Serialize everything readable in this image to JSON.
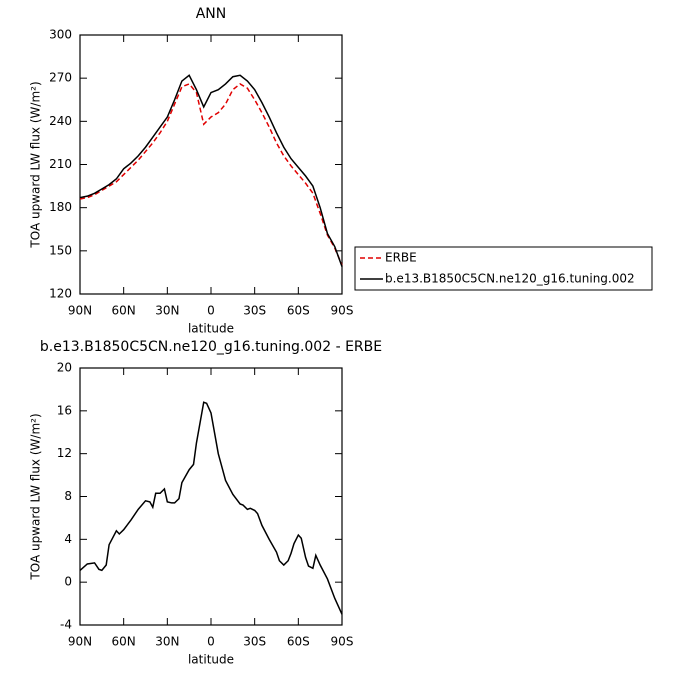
{
  "chart_data": [
    {
      "type": "line",
      "title": "ANN",
      "xlabel": "latitude",
      "ylabel": "TOA upward LW flux (W/m²)",
      "x": [
        90,
        85,
        80,
        75,
        70,
        65,
        60,
        55,
        50,
        45,
        40,
        35,
        30,
        25,
        20,
        15,
        10,
        5,
        0,
        -5,
        -10,
        -15,
        -20,
        -25,
        -30,
        -35,
        -40,
        -45,
        -50,
        -55,
        -60,
        -65,
        -70,
        -75,
        -80,
        -85,
        -90
      ],
      "series": [
        {
          "name": "ERBE",
          "color": "#e00000",
          "dashed": true,
          "values": [
            186,
            187,
            189,
            192,
            195,
            198,
            203,
            208,
            213,
            219,
            225,
            232,
            240,
            252,
            264,
            266,
            260,
            238,
            243,
            246,
            252,
            262,
            266,
            263,
            255,
            246,
            236,
            225,
            216,
            209,
            203,
            197,
            190,
            176,
            161,
            152,
            140
          ]
        },
        {
          "name": "b.e13.B1850C5CN.ne120_g16.tuning.002",
          "color": "#000000",
          "dashed": false,
          "values": [
            187,
            188,
            190,
            193,
            196,
            200,
            207,
            211,
            216,
            222,
            229,
            236,
            243,
            255,
            268,
            272,
            262,
            250,
            260,
            262,
            266,
            271,
            272,
            268,
            262,
            253,
            243,
            232,
            222,
            214,
            208,
            202,
            195,
            180,
            162,
            153,
            139
          ]
        }
      ],
      "xlim": [
        90,
        -90
      ],
      "xticks": [
        {
          "value": 90,
          "label": "90N"
        },
        {
          "value": 60,
          "label": "60N"
        },
        {
          "value": 30,
          "label": "30N"
        },
        0,
        {
          "value": -30,
          "label": "30S"
        },
        {
          "value": -60,
          "label": "60S"
        },
        {
          "value": -90,
          "label": "90S"
        }
      ],
      "ylim": [
        120,
        300
      ],
      "yticks": [
        120,
        150,
        180,
        210,
        240,
        270,
        300
      ],
      "legend": "right"
    },
    {
      "type": "line",
      "title": "b.e13.B1850C5CN.ne120_g16.tuning.002 - ERBE",
      "xlabel": "latitude",
      "ylabel": "TOA upward LW flux (W/m²)",
      "x": [
        90,
        85,
        80,
        77,
        75,
        72,
        70,
        65,
        63,
        60,
        55,
        50,
        45,
        42,
        40,
        38,
        35,
        32,
        30,
        27,
        25,
        22,
        20,
        15,
        12,
        10,
        5,
        3,
        0,
        -5,
        -8,
        -10,
        -15,
        -20,
        -22,
        -25,
        -27,
        -30,
        -32,
        -35,
        -40,
        -45,
        -47,
        -50,
        -53,
        -55,
        -57,
        -60,
        -62,
        -65,
        -67,
        -70,
        -72,
        -75,
        -80,
        -85,
        -90
      ],
      "series": [
        {
          "color": "#000000",
          "dashed": false,
          "values": [
            1.1,
            1.7,
            1.8,
            1.2,
            1.1,
            1.6,
            3.5,
            4.8,
            4.5,
            4.9,
            5.8,
            6.8,
            7.6,
            7.5,
            7.0,
            8.3,
            8.3,
            8.7,
            7.5,
            7.4,
            7.4,
            7.8,
            9.3,
            10.5,
            11.0,
            13.0,
            16.8,
            16.7,
            15.8,
            12.0,
            10.5,
            9.5,
            8.2,
            7.3,
            7.2,
            6.8,
            6.9,
            6.7,
            6.4,
            5.3,
            4.0,
            2.8,
            2.0,
            1.6,
            2.0,
            2.7,
            3.6,
            4.4,
            4.1,
            2.3,
            1.5,
            1.3,
            2.5,
            1.6,
            0.3,
            -1.5,
            -3.0
          ]
        }
      ],
      "xlim": [
        90,
        -90
      ],
      "xticks": [
        {
          "value": 90,
          "label": "90N"
        },
        {
          "value": 60,
          "label": "60N"
        },
        {
          "value": 30,
          "label": "30N"
        },
        0,
        {
          "value": -30,
          "label": "30S"
        },
        {
          "value": -60,
          "label": "60S"
        },
        {
          "value": -90,
          "label": "90S"
        }
      ],
      "ylim": [
        -4,
        20
      ],
      "yticks": [
        -4,
        0,
        4,
        8,
        12,
        16,
        20
      ]
    }
  ]
}
